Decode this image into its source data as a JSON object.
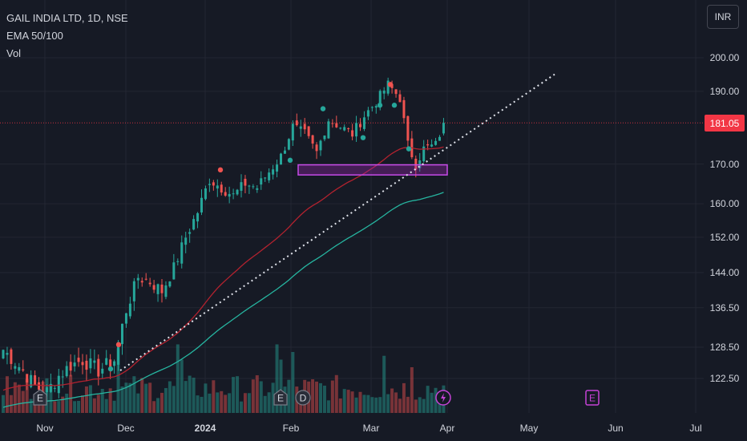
{
  "legend": {
    "symbol_line": "GAIL INDIA LTD, 1D, NSE",
    "ema_line": "EMA 50/100",
    "vol_line": "Vol"
  },
  "currency_button": "INR",
  "last_price_tag": "181.05",
  "colors": {
    "background": "#161a25",
    "up": "#26a69a",
    "down": "#ef5350",
    "ema50": "#b2222f",
    "ema100": "#26b5a0",
    "trendline": "#e0e3eb",
    "zone": "#9c27b0",
    "price_tag": "#f23645"
  },
  "event_icons": [
    {
      "label": "E",
      "kind": "earnings"
    },
    {
      "label": "E",
      "kind": "earnings"
    },
    {
      "label": "D",
      "kind": "dividend"
    },
    {
      "label": "",
      "kind": "split-lightning"
    },
    {
      "label": "E",
      "kind": "earnings-upcoming"
    }
  ],
  "chart_data": {
    "type": "candlestick",
    "y_axis_labels": [
      "200.00",
      "190.00",
      "170.00",
      "160.00",
      "152.00",
      "144.00",
      "136.50",
      "128.50",
      "122.50"
    ],
    "y_ticks": [
      200,
      190,
      170,
      160,
      152,
      144,
      136.5,
      128.5,
      122.5
    ],
    "x_axis_labels": [
      {
        "label": "Nov",
        "bold": false
      },
      {
        "label": "Dec",
        "bold": false
      },
      {
        "label": "2024",
        "bold": true
      },
      {
        "label": "Feb",
        "bold": false
      },
      {
        "label": "Mar",
        "bold": false
      },
      {
        "label": "Apr",
        "bold": false
      },
      {
        "label": "May",
        "bold": false
      },
      {
        "label": "Jun",
        "bold": false
      },
      {
        "label": "Jul",
        "bold": false
      }
    ],
    "scale": "log",
    "last_price": 181.05,
    "ohlc_waypoints_close": [
      [
        0,
        128
      ],
      [
        5,
        124
      ],
      [
        8,
        121
      ],
      [
        11,
        120
      ],
      [
        14,
        123
      ],
      [
        17,
        125
      ],
      [
        20,
        126
      ],
      [
        24,
        124
      ],
      [
        28,
        126
      ],
      [
        31,
        136
      ],
      [
        34,
        143
      ],
      [
        37,
        142
      ],
      [
        40,
        140
      ],
      [
        43,
        145
      ],
      [
        46,
        152
      ],
      [
        49,
        158
      ],
      [
        52,
        166
      ],
      [
        55,
        164
      ],
      [
        58,
        162
      ],
      [
        61,
        165
      ],
      [
        64,
        164
      ],
      [
        67,
        168
      ],
      [
        70,
        172
      ],
      [
        73,
        180
      ],
      [
        76,
        178
      ],
      [
        79,
        173
      ],
      [
        82,
        182
      ],
      [
        85,
        180
      ],
      [
        88,
        178
      ],
      [
        91,
        183
      ],
      [
        94,
        187
      ],
      [
        97,
        192
      ],
      [
        100,
        188
      ],
      [
        102,
        175
      ],
      [
        104,
        170
      ],
      [
        106,
        174
      ],
      [
        109,
        175
      ],
      [
        111,
        181
      ]
    ],
    "ema50_end": 170,
    "ema100_end": 163,
    "support_zone": {
      "low": 167.2,
      "high": 169.8
    },
    "trendline": {
      "from": 124,
      "to": 195
    },
    "volume_bars": "relative, unitless"
  }
}
